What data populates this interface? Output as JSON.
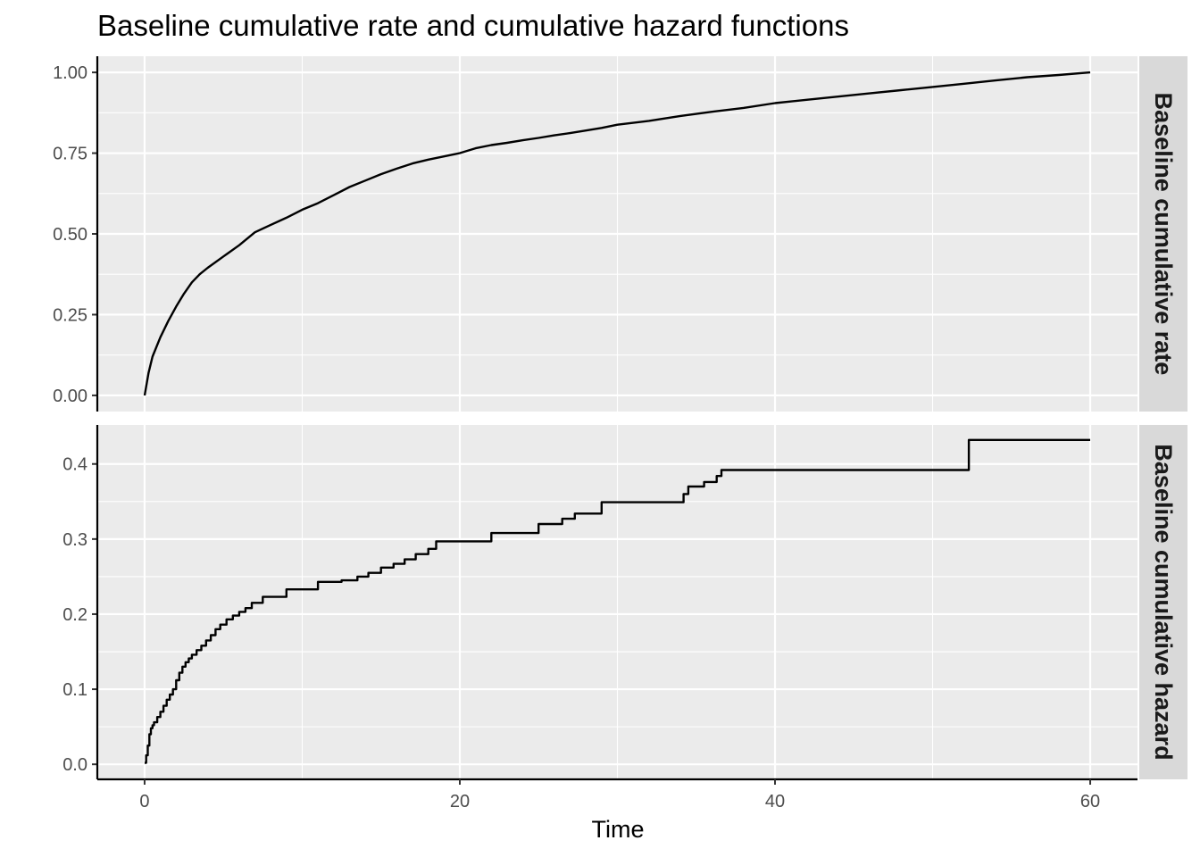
{
  "chart_data": {
    "type": "line",
    "title": "Baseline cumulative rate and cumulative hazard functions",
    "xlabel": "Time",
    "ylabel": "",
    "xlim": [
      -3,
      63
    ],
    "x_ticks": [
      0,
      20,
      40,
      60
    ],
    "x_tick_labels": [
      "0",
      "20",
      "40",
      "60"
    ],
    "grid": true,
    "panels": [
      {
        "strip_label": "Baseline cumulative rate",
        "ylim": [
          -0.05,
          1.05
        ],
        "y_ticks": [
          0,
          0.25,
          0.5,
          0.75,
          1.0
        ],
        "y_tick_labels": [
          "0.00",
          "0.25",
          "0.50",
          "0.75",
          "1.00"
        ],
        "step": false,
        "series": [
          {
            "x": [
              0,
              0.25,
              0.5,
              1,
              1.5,
              2,
              2.5,
              3,
              3.5,
              4,
              5,
              6,
              7,
              8,
              9,
              10,
              11,
              12,
              13,
              14,
              15,
              16,
              17,
              18,
              19,
              20,
              21,
              22,
              23,
              24,
              25,
              26,
              27,
              28,
              29,
              30,
              32,
              34,
              36,
              38,
              40,
              42,
              44,
              46,
              48,
              50,
              52,
              54,
              56,
              58,
              60
            ],
            "y": [
              0,
              0.07,
              0.12,
              0.18,
              0.23,
              0.275,
              0.315,
              0.35,
              0.375,
              0.395,
              0.43,
              0.465,
              0.505,
              0.528,
              0.55,
              0.575,
              0.595,
              0.62,
              0.645,
              0.665,
              0.685,
              0.702,
              0.718,
              0.73,
              0.74,
              0.75,
              0.765,
              0.775,
              0.782,
              0.79,
              0.797,
              0.805,
              0.812,
              0.82,
              0.828,
              0.838,
              0.85,
              0.865,
              0.878,
              0.89,
              0.905,
              0.915,
              0.925,
              0.935,
              0.945,
              0.955,
              0.965,
              0.975,
              0.985,
              0.992,
              1.0
            ]
          }
        ]
      },
      {
        "strip_label": "Baseline cumulative hazard",
        "ylim": [
          -0.02,
          0.452
        ],
        "y_ticks": [
          0,
          0.1,
          0.2,
          0.3,
          0.4
        ],
        "y_tick_labels": [
          "0.0",
          "0.1",
          "0.2",
          "0.3",
          "0.4"
        ],
        "step": true,
        "series": [
          {
            "x": [
              0,
              0.1,
              0.2,
              0.3,
              0.4,
              0.5,
              0.6,
              0.8,
              1.0,
              1.2,
              1.4,
              1.6,
              1.8,
              2.0,
              2.2,
              2.4,
              2.6,
              2.8,
              3.0,
              3.3,
              3.6,
              3.9,
              4.2,
              4.5,
              4.8,
              5.2,
              5.6,
              6.0,
              6.4,
              6.8,
              7.5,
              9.0,
              11.0,
              12.5,
              13.5,
              14.2,
              15.0,
              15.8,
              16.5,
              17.2,
              18.0,
              18.5,
              22.0,
              25.0,
              26.5,
              27.3,
              29.0,
              34.2,
              34.5,
              35.5,
              36.3,
              36.6,
              52.3,
              60.0
            ],
            "y": [
              0.002,
              0.012,
              0.025,
              0.04,
              0.048,
              0.052,
              0.056,
              0.063,
              0.07,
              0.078,
              0.086,
              0.093,
              0.1,
              0.112,
              0.122,
              0.13,
              0.136,
              0.141,
              0.146,
              0.152,
              0.158,
              0.165,
              0.172,
              0.18,
              0.186,
              0.193,
              0.198,
              0.203,
              0.208,
              0.215,
              0.223,
              0.233,
              0.243,
              0.245,
              0.25,
              0.255,
              0.262,
              0.267,
              0.273,
              0.28,
              0.287,
              0.297,
              0.308,
              0.32,
              0.327,
              0.334,
              0.349,
              0.36,
              0.37,
              0.376,
              0.384,
              0.392,
              0.432,
              0.432
            ]
          }
        ]
      }
    ]
  },
  "colors": {
    "panel_bg": "#ebebeb",
    "grid": "#ffffff",
    "line": "#000000",
    "strip_bg": "#d9d9d9",
    "tick_text": "#4d4d4d"
  }
}
